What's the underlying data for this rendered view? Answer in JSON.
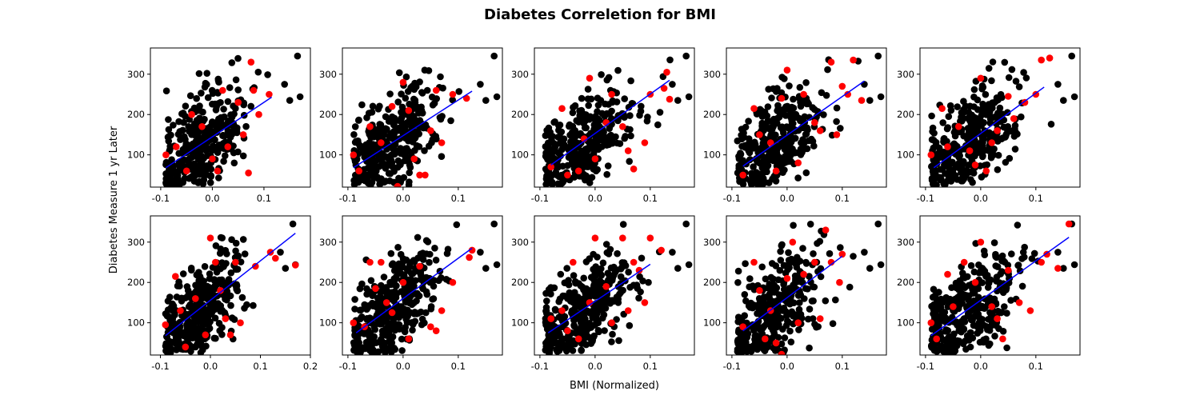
{
  "figure": {
    "title": "Diabetes Correletion for BMI",
    "xlabel": "BMI (Normalized)",
    "ylabel": "Diabetes Measure 1 yr Later"
  },
  "colors": {
    "train_points": "#000000",
    "test_points": "#ff0000",
    "fit_line": "#0000ff"
  },
  "chart_data": [
    {
      "type": "scatter",
      "panel": "row1-col1",
      "xlim": [
        -0.12,
        0.19
      ],
      "ylim": [
        20,
        365
      ],
      "xticks": [
        "-0.1",
        "0.0",
        "0.1"
      ],
      "yticks": [
        "100",
        "200",
        "300"
      ],
      "fit_line": {
        "x": [
          -0.09,
          0.115
        ],
        "y": [
          68,
          243
        ]
      },
      "test_points": [
        {
          "x": -0.09,
          "y": 100
        },
        {
          "x": -0.07,
          "y": 120
        },
        {
          "x": -0.05,
          "y": 60
        },
        {
          "x": -0.02,
          "y": 170
        },
        {
          "x": 0.0,
          "y": 90
        },
        {
          "x": 0.02,
          "y": 260
        },
        {
          "x": 0.03,
          "y": 120
        },
        {
          "x": 0.05,
          "y": 230
        },
        {
          "x": 0.06,
          "y": 150
        },
        {
          "x": 0.07,
          "y": 55
        },
        {
          "x": 0.075,
          "y": 330
        },
        {
          "x": 0.08,
          "y": 260
        },
        {
          "x": 0.09,
          "y": 200
        },
        {
          "x": 0.11,
          "y": 250
        },
        {
          "x": -0.04,
          "y": 200
        },
        {
          "x": 0.01,
          "y": 60
        }
      ]
    },
    {
      "type": "scatter",
      "panel": "row1-col2",
      "xlim": [
        -0.11,
        0.18
      ],
      "ylim": [
        20,
        365
      ],
      "xticks": [
        "-0.1",
        "0.0",
        "0.1"
      ],
      "yticks": [
        "100",
        "200",
        "300"
      ],
      "fit_line": {
        "x": [
          -0.09,
          0.125
        ],
        "y": [
          68,
          258
        ]
      },
      "test_points": [
        {
          "x": -0.09,
          "y": 100
        },
        {
          "x": -0.08,
          "y": 60
        },
        {
          "x": -0.06,
          "y": 170
        },
        {
          "x": -0.04,
          "y": 130
        },
        {
          "x": -0.01,
          "y": 22
        },
        {
          "x": 0.01,
          "y": 210
        },
        {
          "x": 0.02,
          "y": 90
        },
        {
          "x": 0.03,
          "y": 50
        },
        {
          "x": 0.04,
          "y": 50
        },
        {
          "x": 0.05,
          "y": 160
        },
        {
          "x": 0.06,
          "y": 260
        },
        {
          "x": 0.07,
          "y": 130
        },
        {
          "x": 0.09,
          "y": 250
        },
        {
          "x": 0.115,
          "y": 240
        },
        {
          "x": -0.02,
          "y": 220
        },
        {
          "x": 0.0,
          "y": 280
        }
      ]
    },
    {
      "type": "scatter",
      "panel": "row1-col3",
      "xlim": [
        -0.11,
        0.18
      ],
      "ylim": [
        20,
        365
      ],
      "xticks": [
        "-0.1",
        "0.0",
        "0.1"
      ],
      "yticks": [
        "100",
        "200",
        "300"
      ],
      "fit_line": {
        "x": [
          -0.08,
          0.135
        ],
        "y": [
          75,
          285
        ]
      },
      "test_points": [
        {
          "x": -0.08,
          "y": 70
        },
        {
          "x": -0.06,
          "y": 215
        },
        {
          "x": -0.05,
          "y": 50
        },
        {
          "x": -0.02,
          "y": 140
        },
        {
          "x": -0.01,
          "y": 290
        },
        {
          "x": 0.0,
          "y": 90
        },
        {
          "x": 0.02,
          "y": 180
        },
        {
          "x": 0.03,
          "y": 250
        },
        {
          "x": 0.05,
          "y": 170
        },
        {
          "x": 0.06,
          "y": 110
        },
        {
          "x": 0.07,
          "y": 65
        },
        {
          "x": 0.09,
          "y": 130
        },
        {
          "x": 0.1,
          "y": 250
        },
        {
          "x": 0.125,
          "y": 265
        },
        {
          "x": 0.13,
          "y": 305
        },
        {
          "x": 0.135,
          "y": 238
        },
        {
          "x": -0.03,
          "y": 60
        }
      ]
    },
    {
      "type": "scatter",
      "panel": "row1-col4",
      "xlim": [
        -0.11,
        0.18
      ],
      "ylim": [
        20,
        365
      ],
      "xticks": [
        "-0.1",
        "0.0",
        "0.1"
      ],
      "yticks": [
        "100",
        "200",
        "300"
      ],
      "fit_line": {
        "x": [
          -0.08,
          0.14
        ],
        "y": [
          72,
          283
        ]
      },
      "test_points": [
        {
          "x": -0.08,
          "y": 50
        },
        {
          "x": -0.06,
          "y": 215
        },
        {
          "x": -0.05,
          "y": 150
        },
        {
          "x": -0.03,
          "y": 130
        },
        {
          "x": -0.01,
          "y": 240
        },
        {
          "x": 0.0,
          "y": 310
        },
        {
          "x": 0.02,
          "y": 80
        },
        {
          "x": 0.03,
          "y": 250
        },
        {
          "x": 0.05,
          "y": 180
        },
        {
          "x": 0.06,
          "y": 160
        },
        {
          "x": 0.08,
          "y": 330
        },
        {
          "x": 0.09,
          "y": 150
        },
        {
          "x": 0.1,
          "y": 270
        },
        {
          "x": 0.12,
          "y": 335
        },
        {
          "x": 0.135,
          "y": 235
        },
        {
          "x": 0.11,
          "y": 250
        },
        {
          "x": -0.02,
          "y": 60
        }
      ]
    },
    {
      "type": "scatter",
      "panel": "row1-col5",
      "xlim": [
        -0.11,
        0.18
      ],
      "ylim": [
        20,
        365
      ],
      "xticks": [
        "-0.1",
        "0.0",
        "0.1"
      ],
      "yticks": [
        "100",
        "200",
        "300"
      ],
      "fit_line": {
        "x": [
          -0.085,
          0.115
        ],
        "y": [
          68,
          268
        ]
      },
      "test_points": [
        {
          "x": -0.09,
          "y": 100
        },
        {
          "x": -0.07,
          "y": 215
        },
        {
          "x": -0.06,
          "y": 120
        },
        {
          "x": -0.04,
          "y": 170
        },
        {
          "x": -0.02,
          "y": 110
        },
        {
          "x": -0.01,
          "y": 75
        },
        {
          "x": 0.0,
          "y": 290
        },
        {
          "x": 0.02,
          "y": 130
        },
        {
          "x": 0.03,
          "y": 160
        },
        {
          "x": 0.05,
          "y": 245
        },
        {
          "x": 0.06,
          "y": 190
        },
        {
          "x": 0.08,
          "y": 230
        },
        {
          "x": 0.1,
          "y": 250
        },
        {
          "x": 0.11,
          "y": 335
        },
        {
          "x": 0.125,
          "y": 340
        },
        {
          "x": 0.01,
          "y": 60
        }
      ]
    },
    {
      "type": "scatter",
      "panel": "row2-col1",
      "xlim": [
        -0.12,
        0.2
      ],
      "ylim": [
        20,
        365
      ],
      "xticks": [
        "-0.1",
        "0.0",
        "0.1",
        "0.2"
      ],
      "yticks": [
        "100",
        "200",
        "300"
      ],
      "fit_line": {
        "x": [
          -0.09,
          0.17
        ],
        "y": [
          68,
          322
        ]
      },
      "test_points": [
        {
          "x": -0.09,
          "y": 95
        },
        {
          "x": -0.07,
          "y": 215
        },
        {
          "x": -0.06,
          "y": 130
        },
        {
          "x": -0.05,
          "y": 40
        },
        {
          "x": -0.03,
          "y": 160
        },
        {
          "x": -0.01,
          "y": 70
        },
        {
          "x": 0.0,
          "y": 310
        },
        {
          "x": 0.02,
          "y": 180
        },
        {
          "x": 0.03,
          "y": 110
        },
        {
          "x": 0.04,
          "y": 70
        },
        {
          "x": 0.05,
          "y": 250
        },
        {
          "x": 0.06,
          "y": 100
        },
        {
          "x": 0.09,
          "y": 240
        },
        {
          "x": 0.12,
          "y": 275
        },
        {
          "x": 0.13,
          "y": 260
        },
        {
          "x": 0.17,
          "y": 243
        },
        {
          "x": 0.01,
          "y": 250
        }
      ]
    },
    {
      "type": "scatter",
      "panel": "row2-col2",
      "xlim": [
        -0.11,
        0.18
      ],
      "ylim": [
        20,
        365
      ],
      "xticks": [
        "-0.1",
        "0.0",
        "0.1"
      ],
      "yticks": [
        "100",
        "200",
        "300"
      ],
      "fit_line": {
        "x": [
          -0.085,
          0.125
        ],
        "y": [
          75,
          285
        ]
      },
      "test_points": [
        {
          "x": -0.09,
          "y": 100
        },
        {
          "x": -0.07,
          "y": 90
        },
        {
          "x": -0.06,
          "y": 250
        },
        {
          "x": -0.05,
          "y": 185
        },
        {
          "x": -0.04,
          "y": 250
        },
        {
          "x": -0.02,
          "y": 125
        },
        {
          "x": 0.0,
          "y": 200
        },
        {
          "x": 0.01,
          "y": 60
        },
        {
          "x": 0.03,
          "y": 240
        },
        {
          "x": 0.05,
          "y": 90
        },
        {
          "x": 0.06,
          "y": 80
        },
        {
          "x": 0.07,
          "y": 130
        },
        {
          "x": 0.09,
          "y": 200
        },
        {
          "x": 0.12,
          "y": 262
        },
        {
          "x": 0.125,
          "y": 280
        },
        {
          "x": -0.03,
          "y": 150
        }
      ]
    },
    {
      "type": "scatter",
      "panel": "row2-col3",
      "xlim": [
        -0.11,
        0.18
      ],
      "ylim": [
        20,
        365
      ],
      "xticks": [
        "-0.1",
        "0.0",
        "0.1"
      ],
      "yticks": [
        "100",
        "200",
        "300"
      ],
      "fit_line": {
        "x": [
          -0.085,
          0.1
        ],
        "y": [
          75,
          245
        ]
      },
      "test_points": [
        {
          "x": -0.08,
          "y": 110
        },
        {
          "x": -0.06,
          "y": 130
        },
        {
          "x": -0.04,
          "y": 250
        },
        {
          "x": -0.03,
          "y": 60
        },
        {
          "x": -0.01,
          "y": 150
        },
        {
          "x": 0.0,
          "y": 310
        },
        {
          "x": 0.02,
          "y": 190
        },
        {
          "x": 0.03,
          "y": 100
        },
        {
          "x": 0.05,
          "y": 310
        },
        {
          "x": 0.06,
          "y": 130
        },
        {
          "x": 0.07,
          "y": 250
        },
        {
          "x": 0.08,
          "y": 230
        },
        {
          "x": 0.09,
          "y": 150
        },
        {
          "x": 0.1,
          "y": 310
        },
        {
          "x": 0.12,
          "y": 280
        },
        {
          "x": -0.05,
          "y": 80
        }
      ]
    },
    {
      "type": "scatter",
      "panel": "row2-col4",
      "xlim": [
        -0.11,
        0.18
      ],
      "ylim": [
        20,
        365
      ],
      "xticks": [
        "-0.1",
        "0.0",
        "0.1"
      ],
      "yticks": [
        "100",
        "200",
        "300"
      ],
      "fit_line": {
        "x": [
          -0.08,
          0.1
        ],
        "y": [
          80,
          265
        ]
      },
      "test_points": [
        {
          "x": -0.08,
          "y": 90
        },
        {
          "x": -0.06,
          "y": 250
        },
        {
          "x": -0.05,
          "y": 180
        },
        {
          "x": -0.04,
          "y": 60
        },
        {
          "x": -0.02,
          "y": 50
        },
        {
          "x": -0.01,
          "y": 22
        },
        {
          "x": 0.0,
          "y": 210
        },
        {
          "x": 0.01,
          "y": 300
        },
        {
          "x": 0.02,
          "y": 100
        },
        {
          "x": 0.03,
          "y": 220
        },
        {
          "x": 0.05,
          "y": 250
        },
        {
          "x": 0.06,
          "y": 110
        },
        {
          "x": 0.07,
          "y": 330
        },
        {
          "x": 0.08,
          "y": 250
        },
        {
          "x": 0.095,
          "y": 200
        },
        {
          "x": 0.1,
          "y": 270
        },
        {
          "x": -0.03,
          "y": 130
        }
      ]
    },
    {
      "type": "scatter",
      "panel": "row2-col5",
      "xlim": [
        -0.11,
        0.18
      ],
      "ylim": [
        20,
        365
      ],
      "xticks": [
        "-0.1",
        "0.0",
        "0.1"
      ],
      "yticks": [
        "100",
        "200",
        "300"
      ],
      "fit_line": {
        "x": [
          -0.09,
          0.16
        ],
        "y": [
          68,
          312
        ]
      },
      "test_points": [
        {
          "x": -0.09,
          "y": 100
        },
        {
          "x": -0.08,
          "y": 60
        },
        {
          "x": -0.06,
          "y": 220
        },
        {
          "x": -0.05,
          "y": 140
        },
        {
          "x": -0.03,
          "y": 250
        },
        {
          "x": -0.01,
          "y": 200
        },
        {
          "x": 0.0,
          "y": 300
        },
        {
          "x": 0.02,
          "y": 140
        },
        {
          "x": 0.03,
          "y": 110
        },
        {
          "x": 0.04,
          "y": 60
        },
        {
          "x": 0.05,
          "y": 230
        },
        {
          "x": 0.07,
          "y": 150
        },
        {
          "x": 0.09,
          "y": 130
        },
        {
          "x": 0.11,
          "y": 250
        },
        {
          "x": 0.14,
          "y": 235
        },
        {
          "x": 0.16,
          "y": 345
        },
        {
          "x": 0.12,
          "y": 270
        }
      ]
    }
  ]
}
